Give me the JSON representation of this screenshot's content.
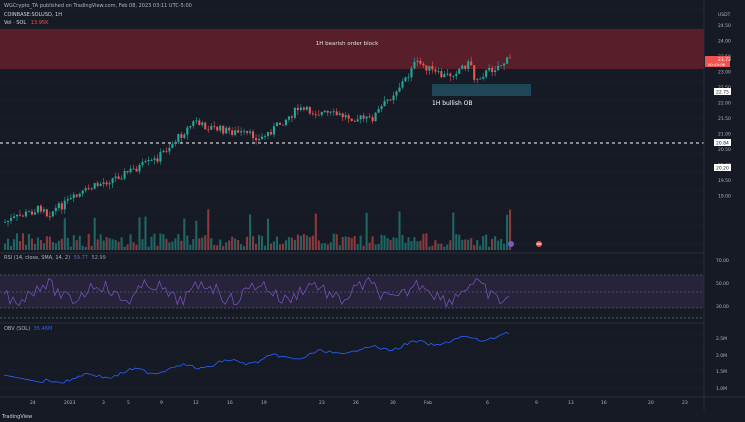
{
  "header": {
    "published_by": "WGCrypto_TA published on TradingView.com, Feb 08, 2023 03:11 UTC-5:00",
    "symbol_line": "COINBASE:SOLUSD, 1H",
    "volume_line": "Vol · SOL",
    "volume_value": "13.95K"
  },
  "price_axis": {
    "currency": "USDT",
    "ticks": [
      "24.50",
      "24.00",
      "23.50",
      "23.00",
      "22.50",
      "22.00",
      "21.50",
      "21.00",
      "20.50",
      "20.00",
      "19.50",
      "19.00"
    ],
    "current_price": "23.73",
    "current_countdown": "00:49:06",
    "ob_level": "22.75",
    "dashed_level": "20.84",
    "lower_tag": "20.20"
  },
  "annotations": {
    "bearish_block": "1H bearish order block",
    "bullish_ob": "1H bullish OB"
  },
  "rsi": {
    "label": "RSI (14, close, SMA, 14, 2)",
    "value": "59.77",
    "value2": "52.99",
    "ticks": [
      "70.00",
      "50.00",
      "30.00"
    ]
  },
  "obv": {
    "label": "OBV (SOL)",
    "value": "35.46M",
    "ticks": [
      "2.5M",
      "2.0M",
      "1.5M",
      "1.0M"
    ]
  },
  "time_axis": {
    "labels": [
      "24",
      "2023",
      "3",
      "5",
      "9",
      "12",
      "16",
      "19",
      "23",
      "26",
      "30",
      "Feb",
      "6",
      "9",
      "13",
      "16",
      "20",
      "23"
    ]
  },
  "footer": "TradingView",
  "colors": {
    "bg": "#161a25",
    "up": "#26a69a",
    "down": "#ef5350",
    "bearish_zone": "#5c1f2a",
    "bullish_zone": "#1f4656",
    "rsi": "#7e57c2",
    "obv": "#2962ff"
  }
}
